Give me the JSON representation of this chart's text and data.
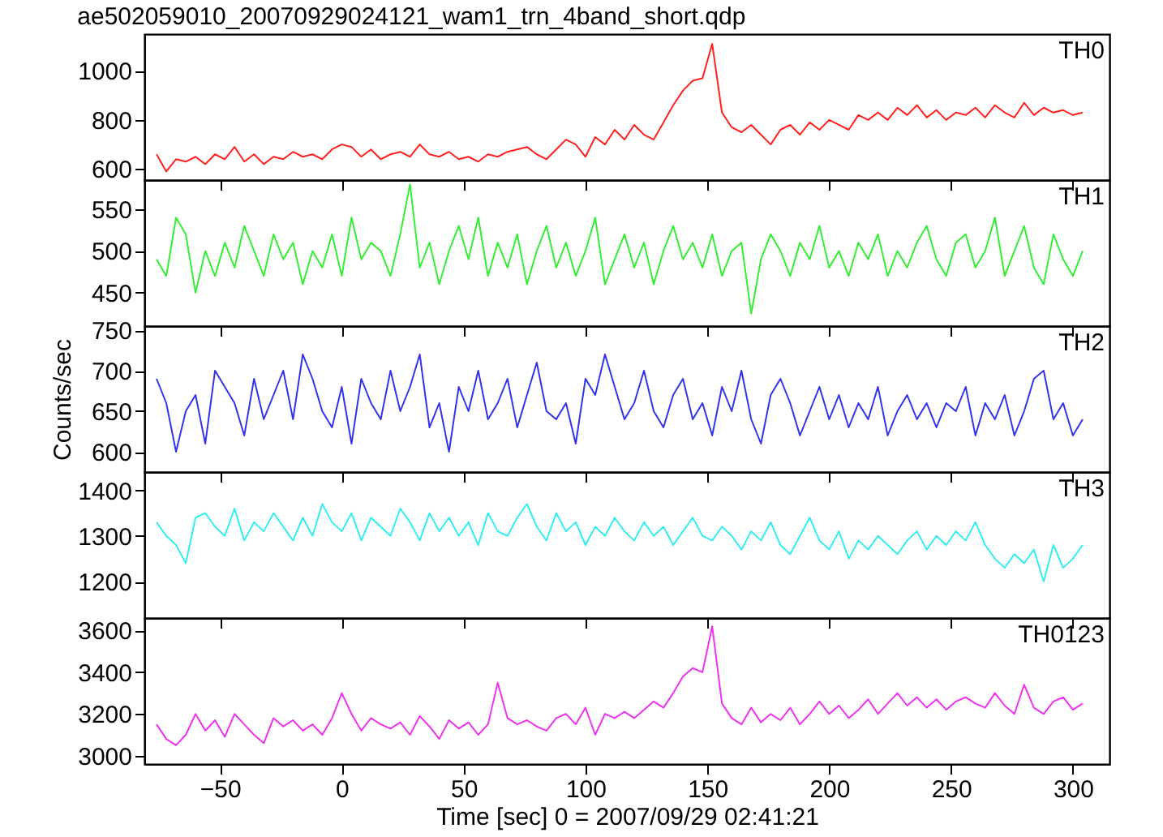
{
  "chart_data": [
    {
      "type": "line",
      "title": "ae502059010_20070929024121_wam1_trn_4band_short.qdp",
      "xlim": [
        -81,
        315
      ],
      "xticks": [
        -50,
        0,
        50,
        100,
        150,
        200,
        250,
        300
      ],
      "ylim": [
        555,
        1150
      ],
      "yticks": [
        600,
        800,
        1000
      ],
      "tick_labels": "y",
      "grid": false,
      "x": [
        -76,
        -72,
        -68,
        -64,
        -60,
        -56,
        -52,
        -48,
        -44,
        -40,
        -36,
        -32,
        -28,
        -24,
        -20,
        -16,
        -12,
        -8,
        -4,
        0,
        4,
        8,
        12,
        16,
        20,
        24,
        28,
        32,
        36,
        40,
        44,
        48,
        52,
        56,
        60,
        64,
        68,
        72,
        76,
        80,
        84,
        88,
        92,
        96,
        100,
        104,
        108,
        112,
        116,
        120,
        124,
        128,
        132,
        136,
        140,
        144,
        148,
        152,
        156,
        160,
        164,
        168,
        172,
        176,
        180,
        184,
        188,
        192,
        196,
        200,
        204,
        208,
        212,
        216,
        220,
        224,
        228,
        232,
        236,
        240,
        244,
        248,
        252,
        256,
        260,
        264,
        268,
        272,
        276,
        280,
        284,
        288,
        292,
        296,
        300,
        304
      ],
      "series": [
        {
          "name": "TH0",
          "color": "#ff2020",
          "values": [
            660,
            590,
            640,
            630,
            650,
            620,
            660,
            640,
            690,
            630,
            660,
            620,
            650,
            640,
            670,
            650,
            660,
            640,
            680,
            700,
            690,
            650,
            680,
            640,
            660,
            670,
            650,
            700,
            660,
            650,
            670,
            640,
            650,
            630,
            660,
            650,
            670,
            680,
            690,
            660,
            640,
            680,
            720,
            700,
            650,
            730,
            700,
            760,
            720,
            780,
            740,
            720,
            790,
            860,
            920,
            960,
            970,
            1110,
            830,
            770,
            750,
            780,
            740,
            700,
            760,
            780,
            740,
            790,
            760,
            800,
            780,
            760,
            820,
            800,
            830,
            800,
            850,
            820,
            860,
            810,
            840,
            800,
            830,
            820,
            850,
            810,
            860,
            830,
            810,
            870,
            820,
            850,
            830,
            840,
            820,
            830
          ]
        }
      ]
    },
    {
      "type": "line",
      "xlim": [
        -81,
        315
      ],
      "xticks": [
        -50,
        0,
        50,
        100,
        150,
        200,
        250,
        300
      ],
      "ylim": [
        410,
        585
      ],
      "yticks": [
        450,
        500,
        550
      ],
      "tick_labels": "y",
      "grid": false,
      "x": [
        -76,
        -72,
        -68,
        -64,
        -60,
        -56,
        -52,
        -48,
        -44,
        -40,
        -36,
        -32,
        -28,
        -24,
        -20,
        -16,
        -12,
        -8,
        -4,
        0,
        4,
        8,
        12,
        16,
        20,
        24,
        28,
        32,
        36,
        40,
        44,
        48,
        52,
        56,
        60,
        64,
        68,
        72,
        76,
        80,
        84,
        88,
        92,
        96,
        100,
        104,
        108,
        112,
        116,
        120,
        124,
        128,
        132,
        136,
        140,
        144,
        148,
        152,
        156,
        160,
        164,
        168,
        172,
        176,
        180,
        184,
        188,
        192,
        196,
        200,
        204,
        208,
        212,
        216,
        220,
        224,
        228,
        232,
        236,
        240,
        244,
        248,
        252,
        256,
        260,
        264,
        268,
        272,
        276,
        280,
        284,
        288,
        292,
        296,
        300,
        304
      ],
      "series": [
        {
          "name": "TH1",
          "color": "#33ee33",
          "values": [
            490,
            470,
            540,
            520,
            450,
            500,
            470,
            510,
            480,
            530,
            500,
            470,
            520,
            490,
            510,
            460,
            500,
            480,
            520,
            470,
            540,
            490,
            510,
            500,
            470,
            520,
            580,
            480,
            510,
            460,
            500,
            530,
            490,
            540,
            470,
            510,
            480,
            520,
            460,
            500,
            530,
            480,
            510,
            470,
            500,
            540,
            460,
            490,
            520,
            480,
            510,
            460,
            500,
            530,
            490,
            510,
            480,
            520,
            470,
            500,
            510,
            425,
            490,
            520,
            500,
            470,
            510,
            490,
            530,
            480,
            500,
            470,
            510,
            490,
            520,
            470,
            500,
            480,
            510,
            530,
            490,
            470,
            510,
            520,
            480,
            500,
            540,
            470,
            500,
            530,
            480,
            460,
            520,
            490,
            470,
            500
          ]
        }
      ]
    },
    {
      "type": "line",
      "ylabel": "Counts/sec",
      "xlim": [
        -81,
        315
      ],
      "xticks": [
        -50,
        0,
        50,
        100,
        150,
        200,
        250,
        300
      ],
      "ylim": [
        575,
        755
      ],
      "yticks": [
        600,
        650,
        700,
        750
      ],
      "tick_labels": "y",
      "grid": false,
      "x": [
        -76,
        -72,
        -68,
        -64,
        -60,
        -56,
        -52,
        -48,
        -44,
        -40,
        -36,
        -32,
        -28,
        -24,
        -20,
        -16,
        -12,
        -8,
        -4,
        0,
        4,
        8,
        12,
        16,
        20,
        24,
        28,
        32,
        36,
        40,
        44,
        48,
        52,
        56,
        60,
        64,
        68,
        72,
        76,
        80,
        84,
        88,
        92,
        96,
        100,
        104,
        108,
        112,
        116,
        120,
        124,
        128,
        132,
        136,
        140,
        144,
        148,
        152,
        156,
        160,
        164,
        168,
        172,
        176,
        180,
        184,
        188,
        192,
        196,
        200,
        204,
        208,
        212,
        216,
        220,
        224,
        228,
        232,
        236,
        240,
        244,
        248,
        252,
        256,
        260,
        264,
        268,
        272,
        276,
        280,
        284,
        288,
        292,
        296,
        300,
        304
      ],
      "series": [
        {
          "name": "TH2",
          "color": "#3333ee",
          "values": [
            690,
            660,
            600,
            650,
            670,
            610,
            700,
            680,
            660,
            620,
            690,
            640,
            670,
            700,
            640,
            720,
            690,
            650,
            630,
            680,
            610,
            690,
            660,
            640,
            700,
            650,
            680,
            720,
            630,
            660,
            600,
            680,
            650,
            700,
            640,
            660,
            690,
            630,
            670,
            710,
            650,
            640,
            660,
            610,
            690,
            670,
            720,
            680,
            640,
            660,
            700,
            650,
            630,
            670,
            690,
            640,
            660,
            620,
            680,
            650,
            700,
            640,
            610,
            670,
            690,
            660,
            620,
            650,
            680,
            640,
            670,
            630,
            660,
            640,
            680,
            620,
            650,
            670,
            640,
            660,
            630,
            660,
            650,
            680,
            620,
            660,
            640,
            670,
            620,
            650,
            690,
            700,
            640,
            660,
            620,
            640
          ]
        }
      ]
    },
    {
      "type": "line",
      "xlim": [
        -81,
        315
      ],
      "xticks": [
        -50,
        0,
        50,
        100,
        150,
        200,
        250,
        300
      ],
      "ylim": [
        1120,
        1440
      ],
      "yticks": [
        1200,
        1300,
        1400
      ],
      "tick_labels": "y",
      "grid": false,
      "x": [
        -76,
        -72,
        -68,
        -64,
        -60,
        -56,
        -52,
        -48,
        -44,
        -40,
        -36,
        -32,
        -28,
        -24,
        -20,
        -16,
        -12,
        -8,
        -4,
        0,
        4,
        8,
        12,
        16,
        20,
        24,
        28,
        32,
        36,
        40,
        44,
        48,
        52,
        56,
        60,
        64,
        68,
        72,
        76,
        80,
        84,
        88,
        92,
        96,
        100,
        104,
        108,
        112,
        116,
        120,
        124,
        128,
        132,
        136,
        140,
        144,
        148,
        152,
        156,
        160,
        164,
        168,
        172,
        176,
        180,
        184,
        188,
        192,
        196,
        200,
        204,
        208,
        212,
        216,
        220,
        224,
        228,
        232,
        236,
        240,
        244,
        248,
        252,
        256,
        260,
        264,
        268,
        272,
        276,
        280,
        284,
        288,
        292,
        296,
        300,
        304
      ],
      "series": [
        {
          "name": "TH3",
          "color": "#33eeee",
          "values": [
            1330,
            1300,
            1280,
            1240,
            1340,
            1350,
            1320,
            1300,
            1360,
            1290,
            1330,
            1310,
            1350,
            1320,
            1290,
            1340,
            1300,
            1370,
            1330,
            1310,
            1350,
            1290,
            1340,
            1320,
            1300,
            1360,
            1330,
            1290,
            1350,
            1310,
            1340,
            1300,
            1330,
            1280,
            1350,
            1310,
            1300,
            1340,
            1370,
            1320,
            1290,
            1350,
            1310,
            1330,
            1280,
            1320,
            1300,
            1340,
            1310,
            1290,
            1330,
            1300,
            1320,
            1280,
            1310,
            1340,
            1300,
            1290,
            1320,
            1300,
            1270,
            1310,
            1290,
            1330,
            1280,
            1260,
            1300,
            1340,
            1290,
            1270,
            1310,
            1250,
            1290,
            1270,
            1300,
            1280,
            1260,
            1290,
            1310,
            1270,
            1300,
            1280,
            1310,
            1290,
            1330,
            1280,
            1250,
            1230,
            1260,
            1240,
            1270,
            1200,
            1280,
            1230,
            1250,
            1280
          ]
        }
      ]
    },
    {
      "type": "line",
      "xlabel": "Time [sec] 0 = 2007/09/29 02:41:21",
      "xlim": [
        -81,
        315
      ],
      "xticks": [
        -50,
        0,
        50,
        100,
        150,
        200,
        250,
        300
      ],
      "ylim": [
        2960,
        3660
      ],
      "yticks": [
        3000,
        3200,
        3400,
        3600
      ],
      "grid": false,
      "x": [
        -76,
        -72,
        -68,
        -64,
        -60,
        -56,
        -52,
        -48,
        -44,
        -40,
        -36,
        -32,
        -28,
        -24,
        -20,
        -16,
        -12,
        -8,
        -4,
        0,
        4,
        8,
        12,
        16,
        20,
        24,
        28,
        32,
        36,
        40,
        44,
        48,
        52,
        56,
        60,
        64,
        68,
        72,
        76,
        80,
        84,
        88,
        92,
        96,
        100,
        104,
        108,
        112,
        116,
        120,
        124,
        128,
        132,
        136,
        140,
        144,
        148,
        152,
        156,
        160,
        164,
        168,
        172,
        176,
        180,
        184,
        188,
        192,
        196,
        200,
        204,
        208,
        212,
        216,
        220,
        224,
        228,
        232,
        236,
        240,
        244,
        248,
        252,
        256,
        260,
        264,
        268,
        272,
        276,
        280,
        284,
        288,
        292,
        296,
        300,
        304
      ],
      "series": [
        {
          "name": "TH0123",
          "color": "#ee33ee",
          "values": [
            3150,
            3080,
            3050,
            3100,
            3200,
            3120,
            3170,
            3090,
            3200,
            3150,
            3100,
            3060,
            3180,
            3140,
            3170,
            3120,
            3150,
            3100,
            3180,
            3300,
            3200,
            3120,
            3180,
            3150,
            3130,
            3160,
            3100,
            3190,
            3140,
            3080,
            3170,
            3130,
            3160,
            3100,
            3150,
            3350,
            3180,
            3150,
            3170,
            3140,
            3120,
            3180,
            3200,
            3150,
            3230,
            3100,
            3200,
            3180,
            3210,
            3180,
            3220,
            3260,
            3230,
            3300,
            3380,
            3420,
            3400,
            3620,
            3250,
            3180,
            3150,
            3230,
            3160,
            3200,
            3170,
            3230,
            3150,
            3200,
            3260,
            3200,
            3240,
            3180,
            3220,
            3270,
            3200,
            3250,
            3300,
            3240,
            3280,
            3230,
            3270,
            3220,
            3260,
            3280,
            3250,
            3230,
            3300,
            3240,
            3200,
            3340,
            3230,
            3200,
            3260,
            3280,
            3220,
            3250
          ]
        }
      ]
    }
  ]
}
